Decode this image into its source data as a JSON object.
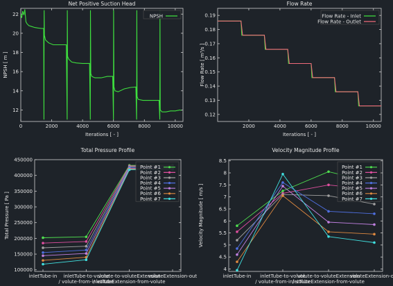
{
  "chart_data": [
    {
      "type": "line",
      "title": "Net Positive Suction Head",
      "xlabel": "Iterations [ - ]",
      "ylabel": "NPSH [ m ]",
      "xlim": [
        0,
        10500
      ],
      "ylim": [
        10.8,
        22.6
      ],
      "xticks": [
        0,
        2000,
        4000,
        6000,
        8000,
        10000
      ],
      "yticks": [
        12,
        14,
        16,
        18,
        20,
        22
      ],
      "legend": "top-right",
      "grid": false,
      "series": [
        {
          "name": "NPSH",
          "color": "#3ee03e",
          "points": [
            [
              0,
              22.0
            ],
            [
              60,
              21.6
            ],
            [
              120,
              22.3
            ],
            [
              200,
              21.9
            ],
            [
              260,
              22.5
            ],
            [
              330,
              21.2
            ],
            [
              400,
              21.0
            ],
            [
              520,
              20.8
            ],
            [
              700,
              20.7
            ],
            [
              900,
              20.6
            ],
            [
              1100,
              20.55
            ],
            [
              1350,
              20.5
            ],
            [
              1480,
              20.5
            ],
            [
              1500,
              11.0
            ],
            [
              1510,
              22.4
            ],
            [
              1530,
              19.8
            ],
            [
              1600,
              19.3
            ],
            [
              1800,
              19.0
            ],
            [
              2100,
              18.8
            ],
            [
              2500,
              18.8
            ],
            [
              2950,
              18.8
            ],
            [
              3000,
              11.0
            ],
            [
              3010,
              22.4
            ],
            [
              3030,
              17.6
            ],
            [
              3100,
              17.3
            ],
            [
              3300,
              17.0
            ],
            [
              3600,
              16.9
            ],
            [
              4000,
              16.85
            ],
            [
              4450,
              16.85
            ],
            [
              4500,
              11.0
            ],
            [
              4510,
              22.4
            ],
            [
              4530,
              15.8
            ],
            [
              4600,
              15.5
            ],
            [
              4800,
              15.35
            ],
            [
              5200,
              15.35
            ],
            [
              5600,
              15.5
            ],
            [
              5950,
              15.5
            ],
            [
              6000,
              11.0
            ],
            [
              6010,
              22.4
            ],
            [
              6030,
              14.4
            ],
            [
              6100,
              14.0
            ],
            [
              6300,
              13.9
            ],
            [
              6700,
              14.2
            ],
            [
              7100,
              14.35
            ],
            [
              7450,
              14.4
            ],
            [
              7500,
              11.0
            ],
            [
              7510,
              22.4
            ],
            [
              7530,
              13.4
            ],
            [
              7600,
              13.1
            ],
            [
              7900,
              13.0
            ],
            [
              8400,
              13.0
            ],
            [
              8950,
              13.0
            ],
            [
              9000,
              11.0
            ],
            [
              9010,
              22.4
            ],
            [
              9030,
              12.0
            ],
            [
              9150,
              11.8
            ],
            [
              9400,
              11.8
            ],
            [
              9700,
              11.9
            ],
            [
              10000,
              11.9
            ],
            [
              10300,
              12.0
            ],
            [
              10400,
              11.95
            ]
          ]
        }
      ]
    },
    {
      "type": "line",
      "title": "Flow Rate",
      "xlabel": "Iterations [ - ]",
      "ylabel": "Flow Rate [ m³/s ]",
      "xlim": [
        0,
        10500
      ],
      "ylim": [
        0.115,
        0.195
      ],
      "xticks": [
        2000,
        4000,
        6000,
        8000,
        10000
      ],
      "yticks": [
        0.12,
        0.13,
        0.14,
        0.15,
        0.16,
        0.17,
        0.18,
        0.19
      ],
      "legend": "top-right",
      "grid": false,
      "series": [
        {
          "name": "Flow Rate - Inlet",
          "color": "#3ee03e",
          "points": [
            [
              0,
              0.186
            ],
            [
              1500,
              0.186
            ],
            [
              1550,
              0.176
            ],
            [
              3000,
              0.176
            ],
            [
              3050,
              0.166
            ],
            [
              4500,
              0.166
            ],
            [
              4550,
              0.156
            ],
            [
              6000,
              0.156
            ],
            [
              6050,
              0.146
            ],
            [
              7500,
              0.146
            ],
            [
              7550,
              0.136
            ],
            [
              9000,
              0.136
            ],
            [
              9050,
              0.126
            ],
            [
              10500,
              0.126
            ]
          ]
        },
        {
          "name": "Flow Rate - Outlet",
          "color": "#f06a7a",
          "points": [
            [
              0,
              0.186
            ],
            [
              1500,
              0.186
            ],
            [
              1600,
              0.176
            ],
            [
              3000,
              0.176
            ],
            [
              3100,
              0.166
            ],
            [
              4500,
              0.166
            ],
            [
              4600,
              0.156
            ],
            [
              6000,
              0.156
            ],
            [
              6100,
              0.146
            ],
            [
              7500,
              0.146
            ],
            [
              7600,
              0.136
            ],
            [
              9000,
              0.136
            ],
            [
              9100,
              0.126
            ],
            [
              10500,
              0.126
            ]
          ]
        }
      ]
    },
    {
      "type": "line",
      "title": "Total Pressure Profile",
      "xlabel": "",
      "ylabel": "Total Pressure [ Pa ]",
      "ylim": [
        95000,
        450000
      ],
      "yticks": [
        100000,
        150000,
        200000,
        250000,
        300000,
        350000,
        400000,
        450000
      ],
      "ytick_labels": [
        "100000",
        "150000",
        "200000",
        "250000",
        "300000",
        "350000",
        "400000",
        "450000"
      ],
      "categories": [
        [
          "inletTube-in"
        ],
        [
          "inletTube-to-volute",
          "/ volute-from-inletTube"
        ],
        [
          "volute-to-voluteExtension",
          "/ voluteExtension-from-volute"
        ],
        [
          "voluteExtension-out"
        ]
      ],
      "legend": "top-right",
      "grid": false,
      "series": [
        {
          "name": "Point #1",
          "color": "#4fe04f",
          "values": [
            202000,
            205000,
            432000,
            433000
          ]
        },
        {
          "name": "Point #2",
          "color": "#e04fa0",
          "values": [
            185000,
            190000,
            430000,
            431000
          ]
        },
        {
          "name": "Point #3",
          "color": "#a0a0a0",
          "values": [
            170000,
            175000,
            428000,
            429000
          ]
        },
        {
          "name": "Point #4",
          "color": "#4f6fe0",
          "values": [
            155000,
            163000,
            425000,
            426000
          ]
        },
        {
          "name": "Point #5",
          "color": "#c080e0",
          "values": [
            145000,
            152000,
            422000,
            423000
          ]
        },
        {
          "name": "Point #6",
          "color": "#e08a40",
          "values": [
            130000,
            140000,
            420000,
            421000
          ]
        },
        {
          "name": "Point #7",
          "color": "#40e0e0",
          "values": [
            118000,
            132000,
            418000,
            419000
          ]
        }
      ]
    },
    {
      "type": "line",
      "title": "Velocity Magnitude Profile",
      "xlabel": "",
      "ylabel": "Velocity Magnitude [ m/s ]",
      "ylim": [
        3.9,
        8.55
      ],
      "yticks": [
        4,
        4.5,
        5,
        5.5,
        6,
        6.5,
        7,
        7.5,
        8,
        8.5
      ],
      "categories": [
        [
          "inletTube-in"
        ],
        [
          "inletTube-to-volute",
          "/ volute-from-inletTube"
        ],
        [
          "volute-to-voluteExtension",
          "/ voluteExtension-from-volute"
        ],
        [
          "voluteExtension-out"
        ]
      ],
      "legend": "top-right",
      "grid": false,
      "series": [
        {
          "name": "Point #1",
          "color": "#4fe04f",
          "values": [
            5.8,
            7.25,
            8.05,
            7.6
          ]
        },
        {
          "name": "Point #2",
          "color": "#e04fa0",
          "values": [
            5.55,
            7.15,
            7.5,
            7.3
          ]
        },
        {
          "name": "Point #3",
          "color": "#a0a0a0",
          "values": [
            5.2,
            7.1,
            7.05,
            6.7
          ]
        },
        {
          "name": "Point #4",
          "color": "#4f6fe0",
          "values": [
            4.85,
            7.6,
            6.4,
            6.3
          ]
        },
        {
          "name": "Point #5",
          "color": "#c080e0",
          "values": [
            4.6,
            7.45,
            5.95,
            5.85
          ]
        },
        {
          "name": "Point #6",
          "color": "#e08a40",
          "values": [
            4.3,
            7.05,
            5.55,
            5.45
          ]
        },
        {
          "name": "Point #7",
          "color": "#40e0e0",
          "values": [
            3.95,
            7.95,
            5.35,
            5.1
          ]
        }
      ]
    }
  ]
}
